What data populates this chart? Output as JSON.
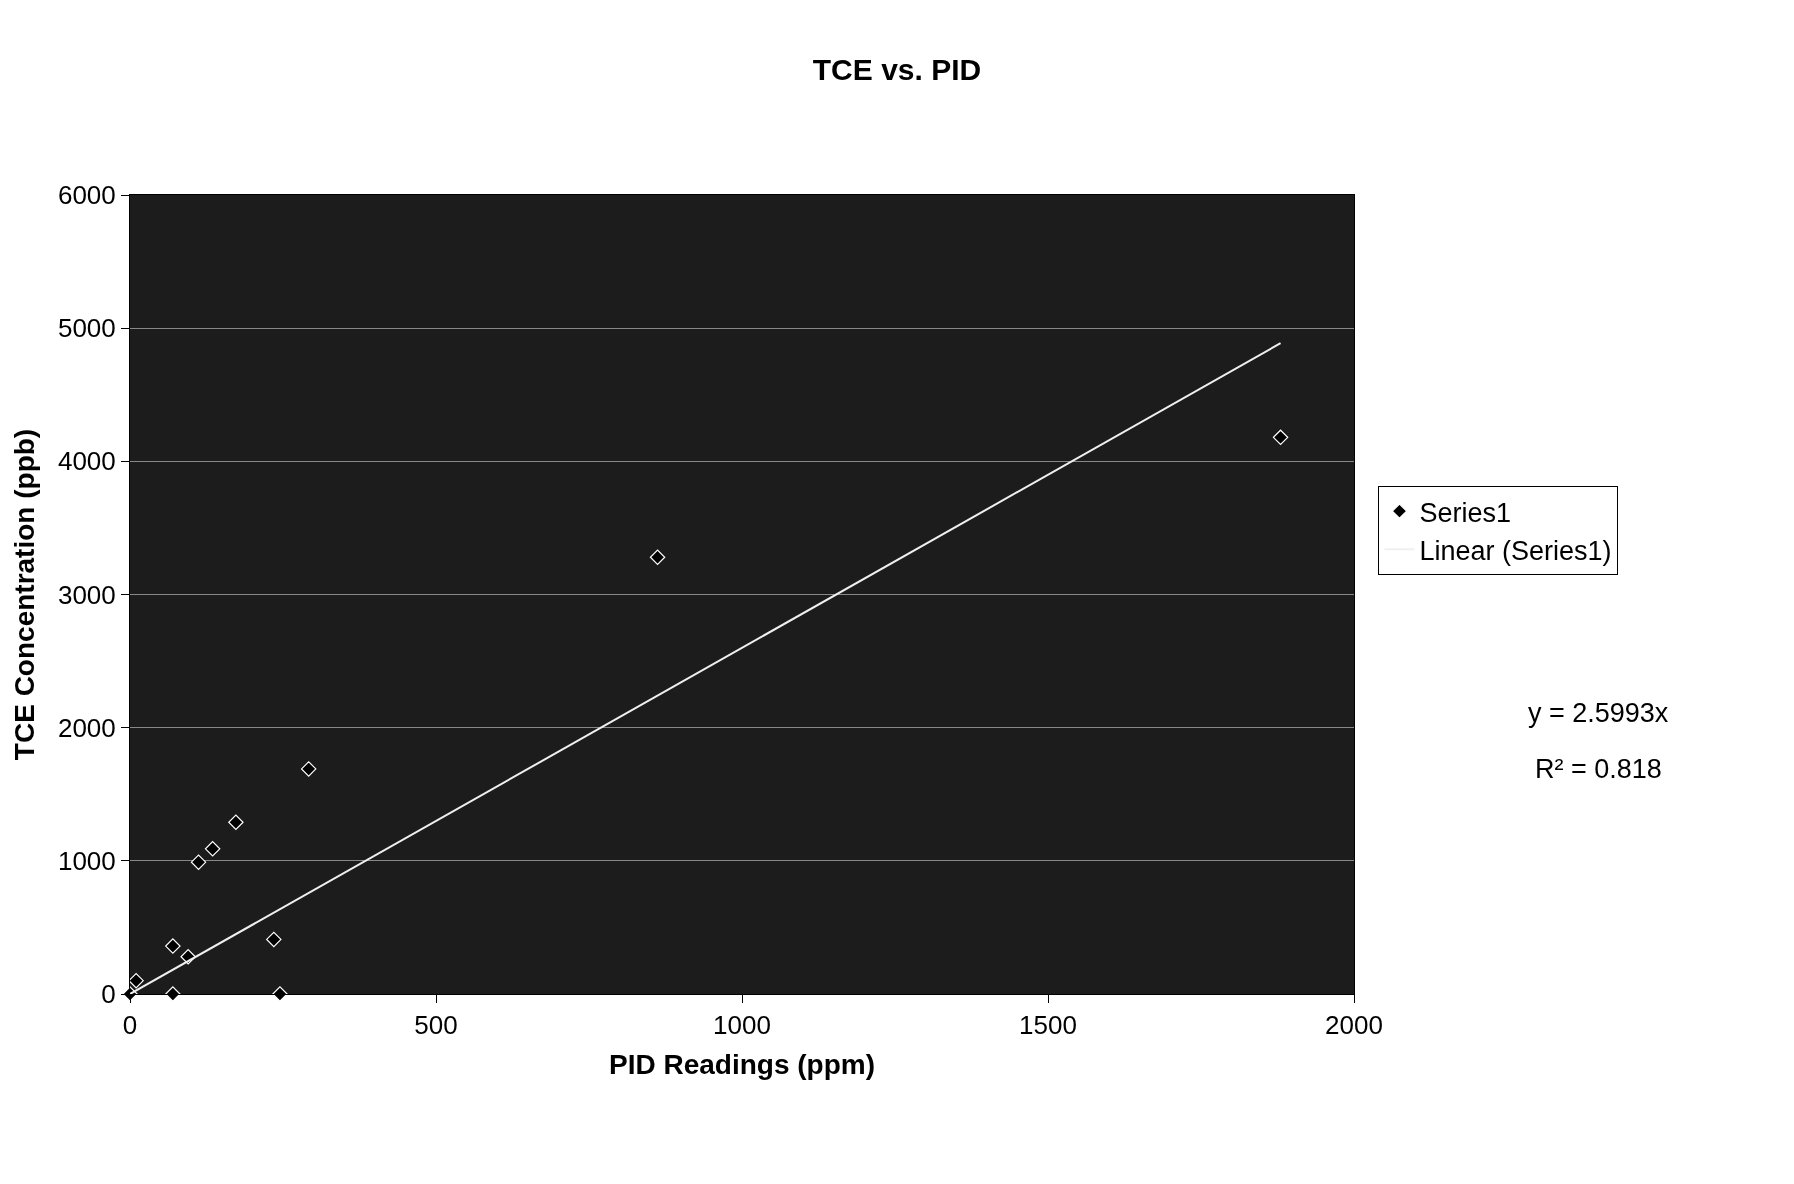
{
  "chart_data": {
    "type": "scatter",
    "title": "TCE vs. PID",
    "xlabel": "PID Readings (ppm)",
    "ylabel": "TCE Concentration (ppb)",
    "xlim": [
      0,
      2000
    ],
    "xticks": [
      0,
      500,
      1000,
      1500,
      2000
    ],
    "ylim": [
      0,
      6000
    ],
    "yticks": [
      0,
      1000,
      2000,
      3000,
      4000,
      5000,
      6000
    ],
    "grid": "y",
    "legend": "right",
    "marker": "diamond",
    "series": [
      {
        "name": "Series1",
        "color": "#000000",
        "x": [
          0,
          10,
          70,
          70,
          95,
          112,
          135,
          173,
          235,
          245,
          292,
          862,
          1880
        ],
        "values": [
          0,
          100,
          0,
          360,
          280,
          990,
          1090,
          1290,
          410,
          0,
          1690,
          3280,
          4180
        ]
      },
      {
        "name": "Linear (Series1)",
        "type": "line",
        "color": "#f0f0f0",
        "line_style": "solid",
        "marker": "none",
        "x": [
          0,
          1880
        ],
        "values": [
          0,
          4887
        ]
      }
    ],
    "annotations": [
      "y = 2.5993x",
      "R² = 0.818"
    ]
  }
}
